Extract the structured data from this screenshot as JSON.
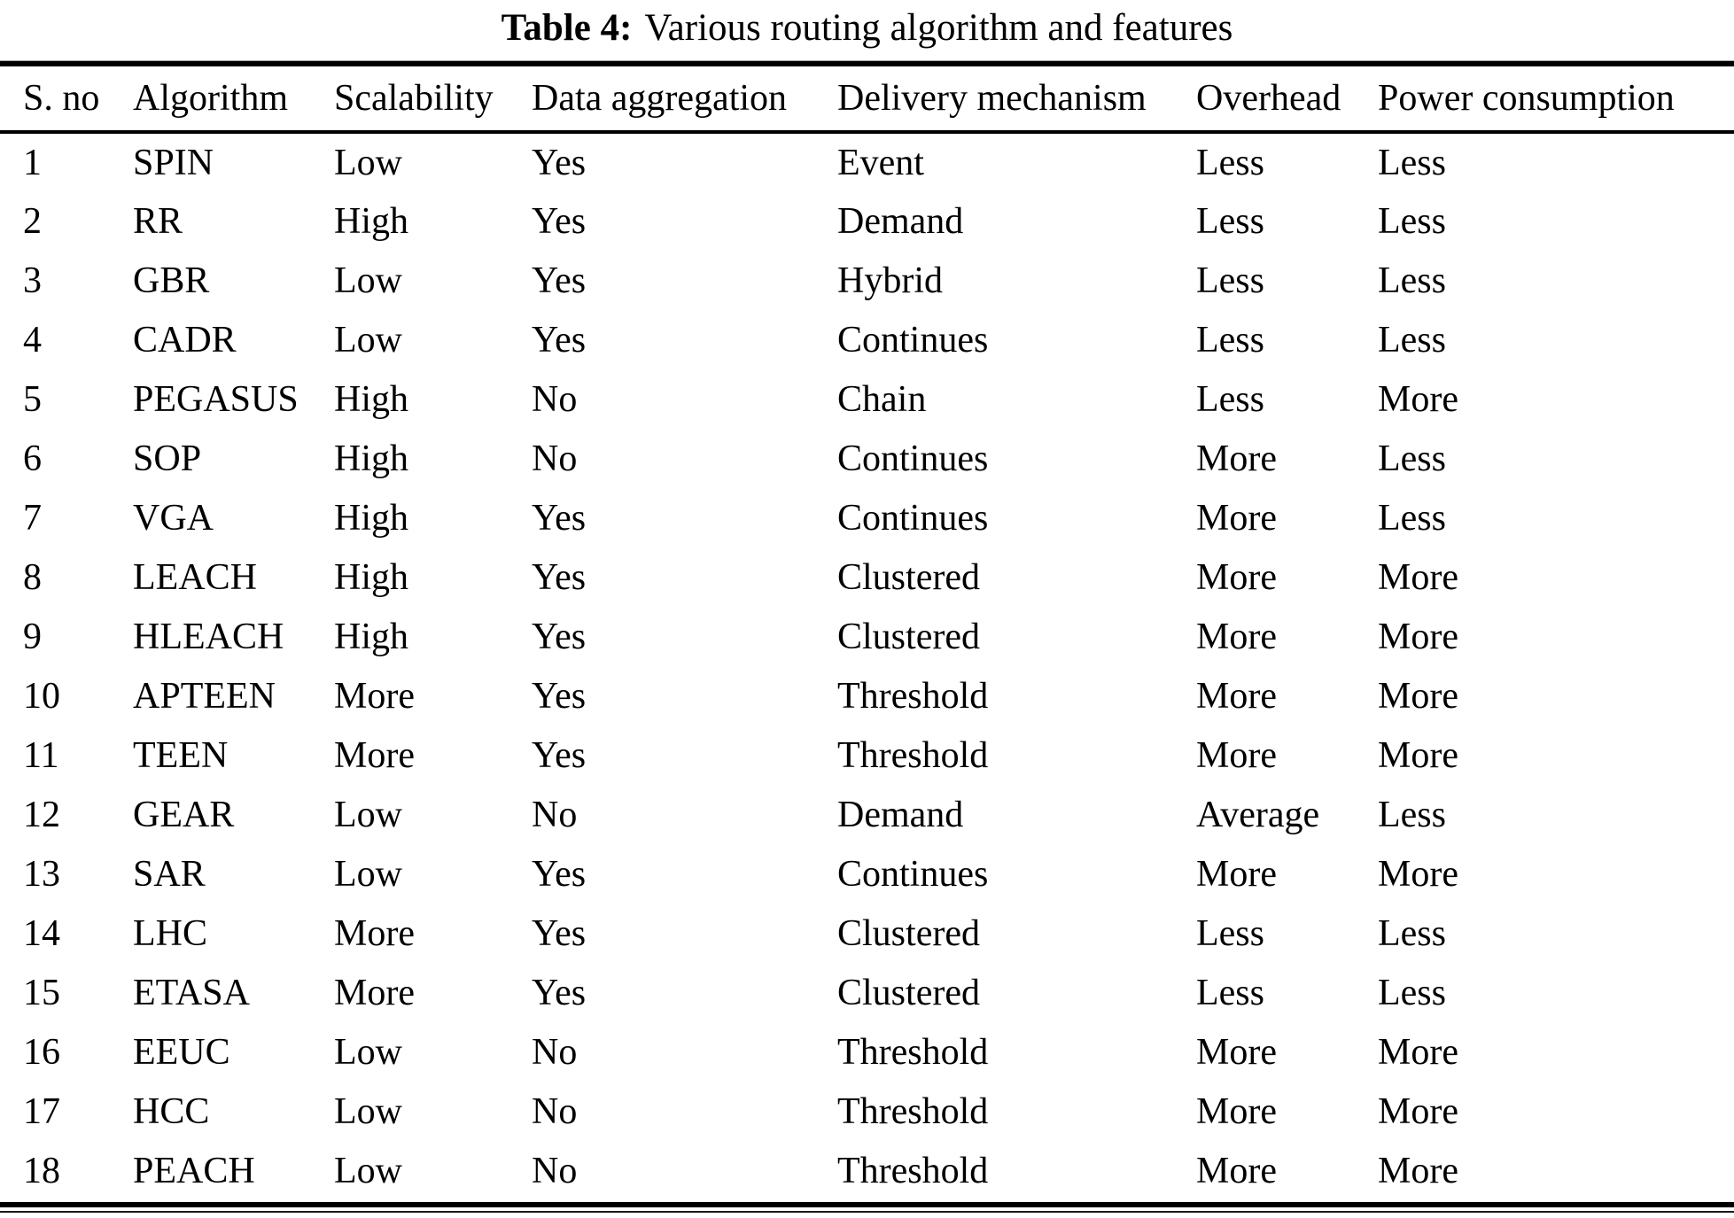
{
  "caption": {
    "label": "Table 4:",
    "text": "Various routing algorithm and features"
  },
  "table": {
    "columns": [
      "S. no",
      "Algorithm",
      "Scalability",
      "Data aggregation",
      "Delivery mechanism",
      "Overhead",
      "Power consumption"
    ],
    "rows": [
      [
        "1",
        "SPIN",
        "Low",
        "Yes",
        "Event",
        "Less",
        "Less"
      ],
      [
        "2",
        "RR",
        "High",
        "Yes",
        "Demand",
        "Less",
        "Less"
      ],
      [
        "3",
        "GBR",
        "Low",
        "Yes",
        "Hybrid",
        "Less",
        "Less"
      ],
      [
        "4",
        "CADR",
        "Low",
        "Yes",
        "Continues",
        "Less",
        "Less"
      ],
      [
        "5",
        "PEGASUS",
        "High",
        "No",
        "Chain",
        "Less",
        "More"
      ],
      [
        "6",
        "SOP",
        "High",
        "No",
        "Continues",
        "More",
        "Less"
      ],
      [
        "7",
        "VGA",
        "High",
        "Yes",
        "Continues",
        "More",
        "Less"
      ],
      [
        "8",
        "LEACH",
        "High",
        "Yes",
        "Clustered",
        "More",
        "More"
      ],
      [
        "9",
        "HLEACH",
        "High",
        "Yes",
        "Clustered",
        "More",
        "More"
      ],
      [
        "10",
        "APTEEN",
        "More",
        "Yes",
        "Threshold",
        "More",
        "More"
      ],
      [
        "11",
        "TEEN",
        "More",
        "Yes",
        "Threshold",
        "More",
        "More"
      ],
      [
        "12",
        "GEAR",
        "Low",
        "No",
        "Demand",
        "Average",
        "Less"
      ],
      [
        "13",
        "SAR",
        "Low",
        "Yes",
        "Continues",
        "More",
        "More"
      ],
      [
        "14",
        "LHC",
        "More",
        "Yes",
        "Clustered",
        "Less",
        "Less"
      ],
      [
        "15",
        "ETASA",
        "More",
        "Yes",
        "Clustered",
        "Less",
        "Less"
      ],
      [
        "16",
        "EEUC",
        "Low",
        "No",
        "Threshold",
        "More",
        "More"
      ],
      [
        "17",
        "HCC",
        "Low",
        "No",
        "Threshold",
        "More",
        "More"
      ],
      [
        "18",
        "PEACH",
        "Low",
        "No",
        "Threshold",
        "More",
        "More"
      ]
    ]
  },
  "colors": {
    "text": "#000000",
    "background": "#ffffff",
    "rule": "#000000"
  }
}
